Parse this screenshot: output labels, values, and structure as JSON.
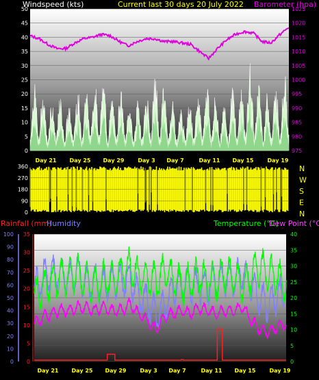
{
  "header": {
    "left_label": "Windspeed (kts)",
    "center_label": "Current last 30 days 20 July 2022",
    "right_label": "Barometer (hpa)"
  },
  "colors": {
    "wind": "#d8f8d0",
    "barometer": "#e000e0",
    "direction": "#ffff00",
    "rainfall": "#ff2020",
    "humidity": "#8080ff",
    "temperature": "#00ff00",
    "dew_point": "#ff00ff",
    "title_yellow": "#ffff00"
  },
  "x_axis": {
    "labels": [
      "Day 21",
      "Day 25",
      "Day 29",
      "Day 3",
      "Day 7",
      "Day 11",
      "Day 15",
      "Day 19"
    ]
  },
  "chart_data": [
    {
      "type": "area",
      "id": "wind-barometer",
      "y_left": {
        "label": "Windspeed (kts)",
        "ticks": [
          0,
          5,
          10,
          15,
          20,
          25,
          30,
          35,
          40,
          45,
          50
        ],
        "range": [
          0,
          50
        ]
      },
      "y_right": {
        "label": "Barometer (hpa)",
        "ticks": [
          975,
          980,
          985,
          990,
          995,
          1000,
          1005,
          1010,
          1015,
          1020,
          1025
        ],
        "range": [
          975,
          1025
        ]
      },
      "series": [
        {
          "name": "Windspeed (kts)",
          "kind": "area",
          "daily_peaks": [
            23,
            20,
            17,
            18,
            15,
            21,
            22,
            25,
            24,
            18,
            22,
            16,
            17,
            19,
            26,
            22,
            17,
            14,
            18,
            20,
            25,
            18,
            16,
            22,
            22,
            30,
            24,
            20,
            23,
            28
          ]
        },
        {
          "name": "Barometer (hpa)",
          "kind": "line",
          "daily": [
            1015.5,
            1014.5,
            1012.5,
            1011,
            1011,
            1013,
            1014.5,
            1015,
            1016,
            1015.5,
            1013.5,
            1012,
            1013.5,
            1014.5,
            1014.5,
            1013.5,
            1013.5,
            1013,
            1012.5,
            1010,
            1007.5,
            1011,
            1014,
            1016,
            1017,
            1016.5,
            1013.5,
            1013,
            1016,
            1018.5
          ]
        }
      ]
    },
    {
      "type": "area",
      "id": "wind-direction",
      "y_left": {
        "ticks": [
          0,
          90,
          180,
          270,
          360
        ],
        "range": [
          0,
          360
        ]
      },
      "y_right": {
        "ticks": [
          "N",
          "W",
          "S",
          "E",
          "N"
        ]
      },
      "series": [
        {
          "name": "Wind direction",
          "kind": "density"
        }
      ]
    },
    {
      "type": "line",
      "id": "temp-humidity-rain",
      "y_left_rain": {
        "label": "Rainfall (mm)",
        "ticks": [
          0,
          5,
          10,
          15,
          20,
          25,
          30,
          35
        ],
        "range": [
          0,
          35
        ]
      },
      "y_left_humidity": {
        "label": "Humidity",
        "ticks": [
          0,
          10,
          20,
          30,
          40,
          50,
          60,
          70,
          80,
          90,
          100
        ],
        "range": [
          0,
          100
        ]
      },
      "y_right": {
        "label": "Temperature (°C)",
        "ticks": [
          0,
          5,
          10,
          15,
          20,
          25,
          30,
          35,
          40
        ],
        "range": [
          0,
          40
        ]
      },
      "dew_label": "Dew Point (°C)",
      "series": [
        {
          "name": "Humidity",
          "daily": [
            58,
            66,
            68,
            70,
            64,
            72,
            60,
            62,
            60,
            64,
            62,
            66,
            52,
            48,
            36,
            44,
            56,
            60,
            60,
            58,
            60,
            62,
            66,
            64,
            70,
            60,
            50,
            44,
            52,
            56
          ]
        },
        {
          "name": "Temperature (°C)",
          "daily": [
            20,
            23,
            25,
            26,
            27,
            28,
            25,
            24,
            26,
            25,
            28,
            30,
            27,
            26,
            25,
            28,
            26,
            24,
            25,
            27,
            26,
            25,
            28,
            26,
            24,
            27,
            30,
            28,
            26,
            24
          ]
        },
        {
          "name": "Dew Point (°C)",
          "daily": [
            12,
            14,
            15,
            16,
            16,
            17,
            17,
            16,
            17,
            16,
            16,
            18,
            15,
            13,
            10,
            14,
            15,
            16,
            15,
            17,
            16,
            15,
            16,
            16,
            17,
            13,
            10,
            9,
            11,
            12
          ]
        },
        {
          "name": "Rainfall (mm)",
          "events": [
            {
              "day_index": 8.7,
              "width": 0.9,
              "value": 2
            },
            {
              "day_index": 17.5,
              "width": 0.25,
              "value": 0.5
            },
            {
              "day_index": 21.8,
              "width": 0.6,
              "value": 9
            }
          ]
        }
      ]
    }
  ]
}
